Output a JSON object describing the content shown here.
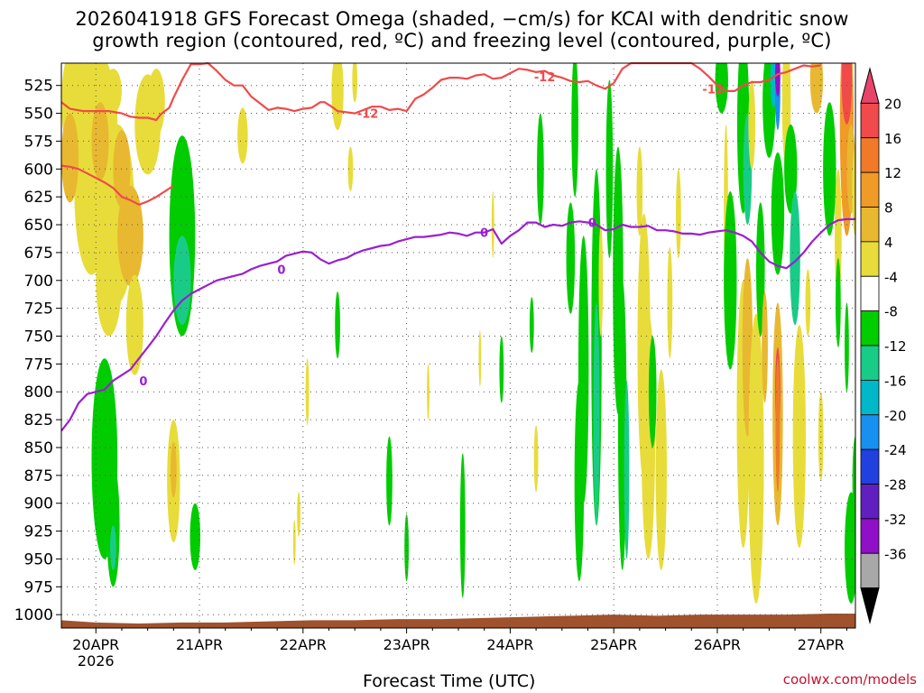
{
  "title_line1": "2026041918 GFS Forecast Omega (shaded, −cm/s) for KCAI with dendritic snow",
  "title_line2": "growth region (contoured, red, ºC) and freezing level (contoured, purple, ºC)",
  "credit": "coolwx.com/models",
  "chart_data": {
    "type": "heatmap",
    "xlabel": "Forecast Time (UTC)",
    "ylabel": "",
    "x_ticks": [
      "20APR",
      "21APR",
      "22APR",
      "23APR",
      "24APR",
      "25APR",
      "26APR",
      "27APR"
    ],
    "x_ticks_sub": [
      "2026",
      "",
      "",
      "",
      "",
      "",
      "",
      ""
    ],
    "xlim_hours": [
      -8,
      176
    ],
    "ylim_hPa": [
      1012,
      505
    ],
    "y_ticks": [
      525,
      550,
      575,
      600,
      625,
      650,
      675,
      700,
      725,
      750,
      775,
      800,
      825,
      850,
      875,
      900,
      925,
      950,
      975,
      1000
    ],
    "grid": "dotted",
    "colorbar": {
      "ticks": [
        20,
        16,
        12,
        8,
        4,
        -4,
        -8,
        -12,
        -16,
        -20,
        -24,
        -28,
        -32,
        -36
      ],
      "colors": [
        "#e8446a",
        "#f04a4a",
        "#f07a2a",
        "#f09a28",
        "#e8b830",
        "#e8dc3a",
        "#ffffff",
        "#00cc00",
        "#18cc88",
        "#00b8c8",
        "#1890f0",
        "#2040e0",
        "#6020c0",
        "#9010c8",
        "#a8a8a8",
        "#000000"
      ]
    },
    "series": [
      {
        "name": "-12",
        "color": "#f04a4a",
        "x": [
          -8,
          -6,
          -3,
          0,
          3,
          6,
          8,
          10,
          12,
          14,
          15,
          17,
          18,
          20,
          22,
          24,
          26,
          28,
          30,
          32,
          34,
          36,
          38,
          40,
          42,
          44,
          46,
          48,
          50,
          52,
          53,
          55,
          56,
          58,
          60,
          62,
          64,
          66,
          68,
          70,
          72,
          74,
          76,
          78,
          80,
          82,
          84,
          86,
          88,
          90,
          92,
          94,
          96,
          98,
          100,
          102,
          104,
          106,
          108,
          110,
          112,
          114,
          116,
          118,
          120
        ],
        "y": [
          540,
          546,
          548,
          548,
          548,
          550,
          553,
          554,
          554,
          556,
          551,
          545,
          536,
          520,
          506,
          506,
          505,
          512,
          520,
          525,
          525,
          535,
          541,
          547,
          545,
          546,
          548,
          546,
          545,
          540,
          540,
          545,
          548,
          549,
          550,
          547,
          544,
          544,
          547,
          546,
          548,
          537,
          533,
          527,
          520,
          518,
          518,
          519,
          516,
          515,
          519,
          518,
          514,
          510,
          511,
          513,
          512,
          516,
          518,
          521,
          522,
          521,
          525,
          528,
          523
        ]
      },
      {
        "name": "-12",
        "color": "#f04a4a",
        "x": [
          120,
          122,
          124,
          126,
          128,
          130,
          132,
          134,
          136,
          138,
          140,
          142
        ],
        "y": [
          523,
          510,
          505,
          505,
          505,
          505,
          505,
          505,
          505,
          505,
          510,
          517
        ]
      },
      {
        "name": "-12",
        "color": "#f04a4a",
        "x": [
          142,
          144,
          146,
          148,
          150,
          152,
          154,
          156,
          158,
          160,
          162,
          164,
          166,
          168
        ],
        "y": [
          517,
          525,
          530,
          530,
          525,
          522,
          522,
          520,
          515,
          513,
          510,
          507,
          508,
          507
        ]
      },
      {
        "name": "",
        "color": "#f04a4a",
        "x": [
          -8,
          -6,
          -4,
          -2,
          0,
          2,
          4,
          6,
          8,
          10,
          12,
          14,
          16,
          18
        ],
        "y": [
          597,
          598,
          600,
          604,
          608,
          612,
          617,
          625,
          628,
          632,
          629,
          625,
          620,
          615
        ]
      },
      {
        "name": "0",
        "color": "#9b1fd0",
        "x": [
          -8,
          -6,
          -4,
          -2,
          0,
          2,
          4,
          6,
          8,
          10,
          12,
          14,
          16,
          18,
          20,
          22,
          24,
          26,
          28,
          30,
          32,
          34,
          36,
          38,
          40,
          42,
          44,
          46,
          48,
          50,
          52,
          54,
          56,
          58,
          60,
          62,
          64,
          66,
          68,
          70,
          72,
          74,
          76,
          78,
          80,
          82,
          84,
          86,
          88,
          90,
          92,
          94,
          96,
          98,
          100,
          102,
          104,
          106,
          108,
          110,
          112,
          114,
          116,
          118,
          120,
          122,
          124,
          126,
          128,
          130,
          132,
          134,
          136,
          138,
          140,
          142,
          144,
          146,
          148,
          150,
          152,
          154,
          156,
          158,
          160,
          162,
          164,
          166,
          168,
          170,
          172,
          174,
          176
        ],
        "y": [
          835,
          825,
          810,
          802,
          800,
          798,
          790,
          785,
          780,
          770,
          760,
          750,
          738,
          727,
          718,
          712,
          708,
          704,
          700,
          698,
          696,
          694,
          690,
          687,
          685,
          683,
          678,
          676,
          674,
          675,
          681,
          685,
          682,
          680,
          676,
          673,
          671,
          669,
          668,
          665,
          663,
          661,
          661,
          660,
          659,
          657,
          658,
          660,
          657,
          657,
          654,
          667,
          660,
          655,
          648,
          648,
          652,
          650,
          651,
          648,
          647,
          648,
          650,
          655,
          654,
          650,
          652,
          652,
          651,
          655,
          655,
          656,
          658,
          658,
          659,
          657,
          656,
          655,
          657,
          660,
          665,
          675,
          683,
          687,
          689,
          683,
          675,
          665,
          657,
          650,
          646,
          645,
          645
        ]
      }
    ],
    "labels": [
      "-12",
      "-12",
      "-12",
      "0",
      "0",
      "0",
      "0"
    ]
  }
}
